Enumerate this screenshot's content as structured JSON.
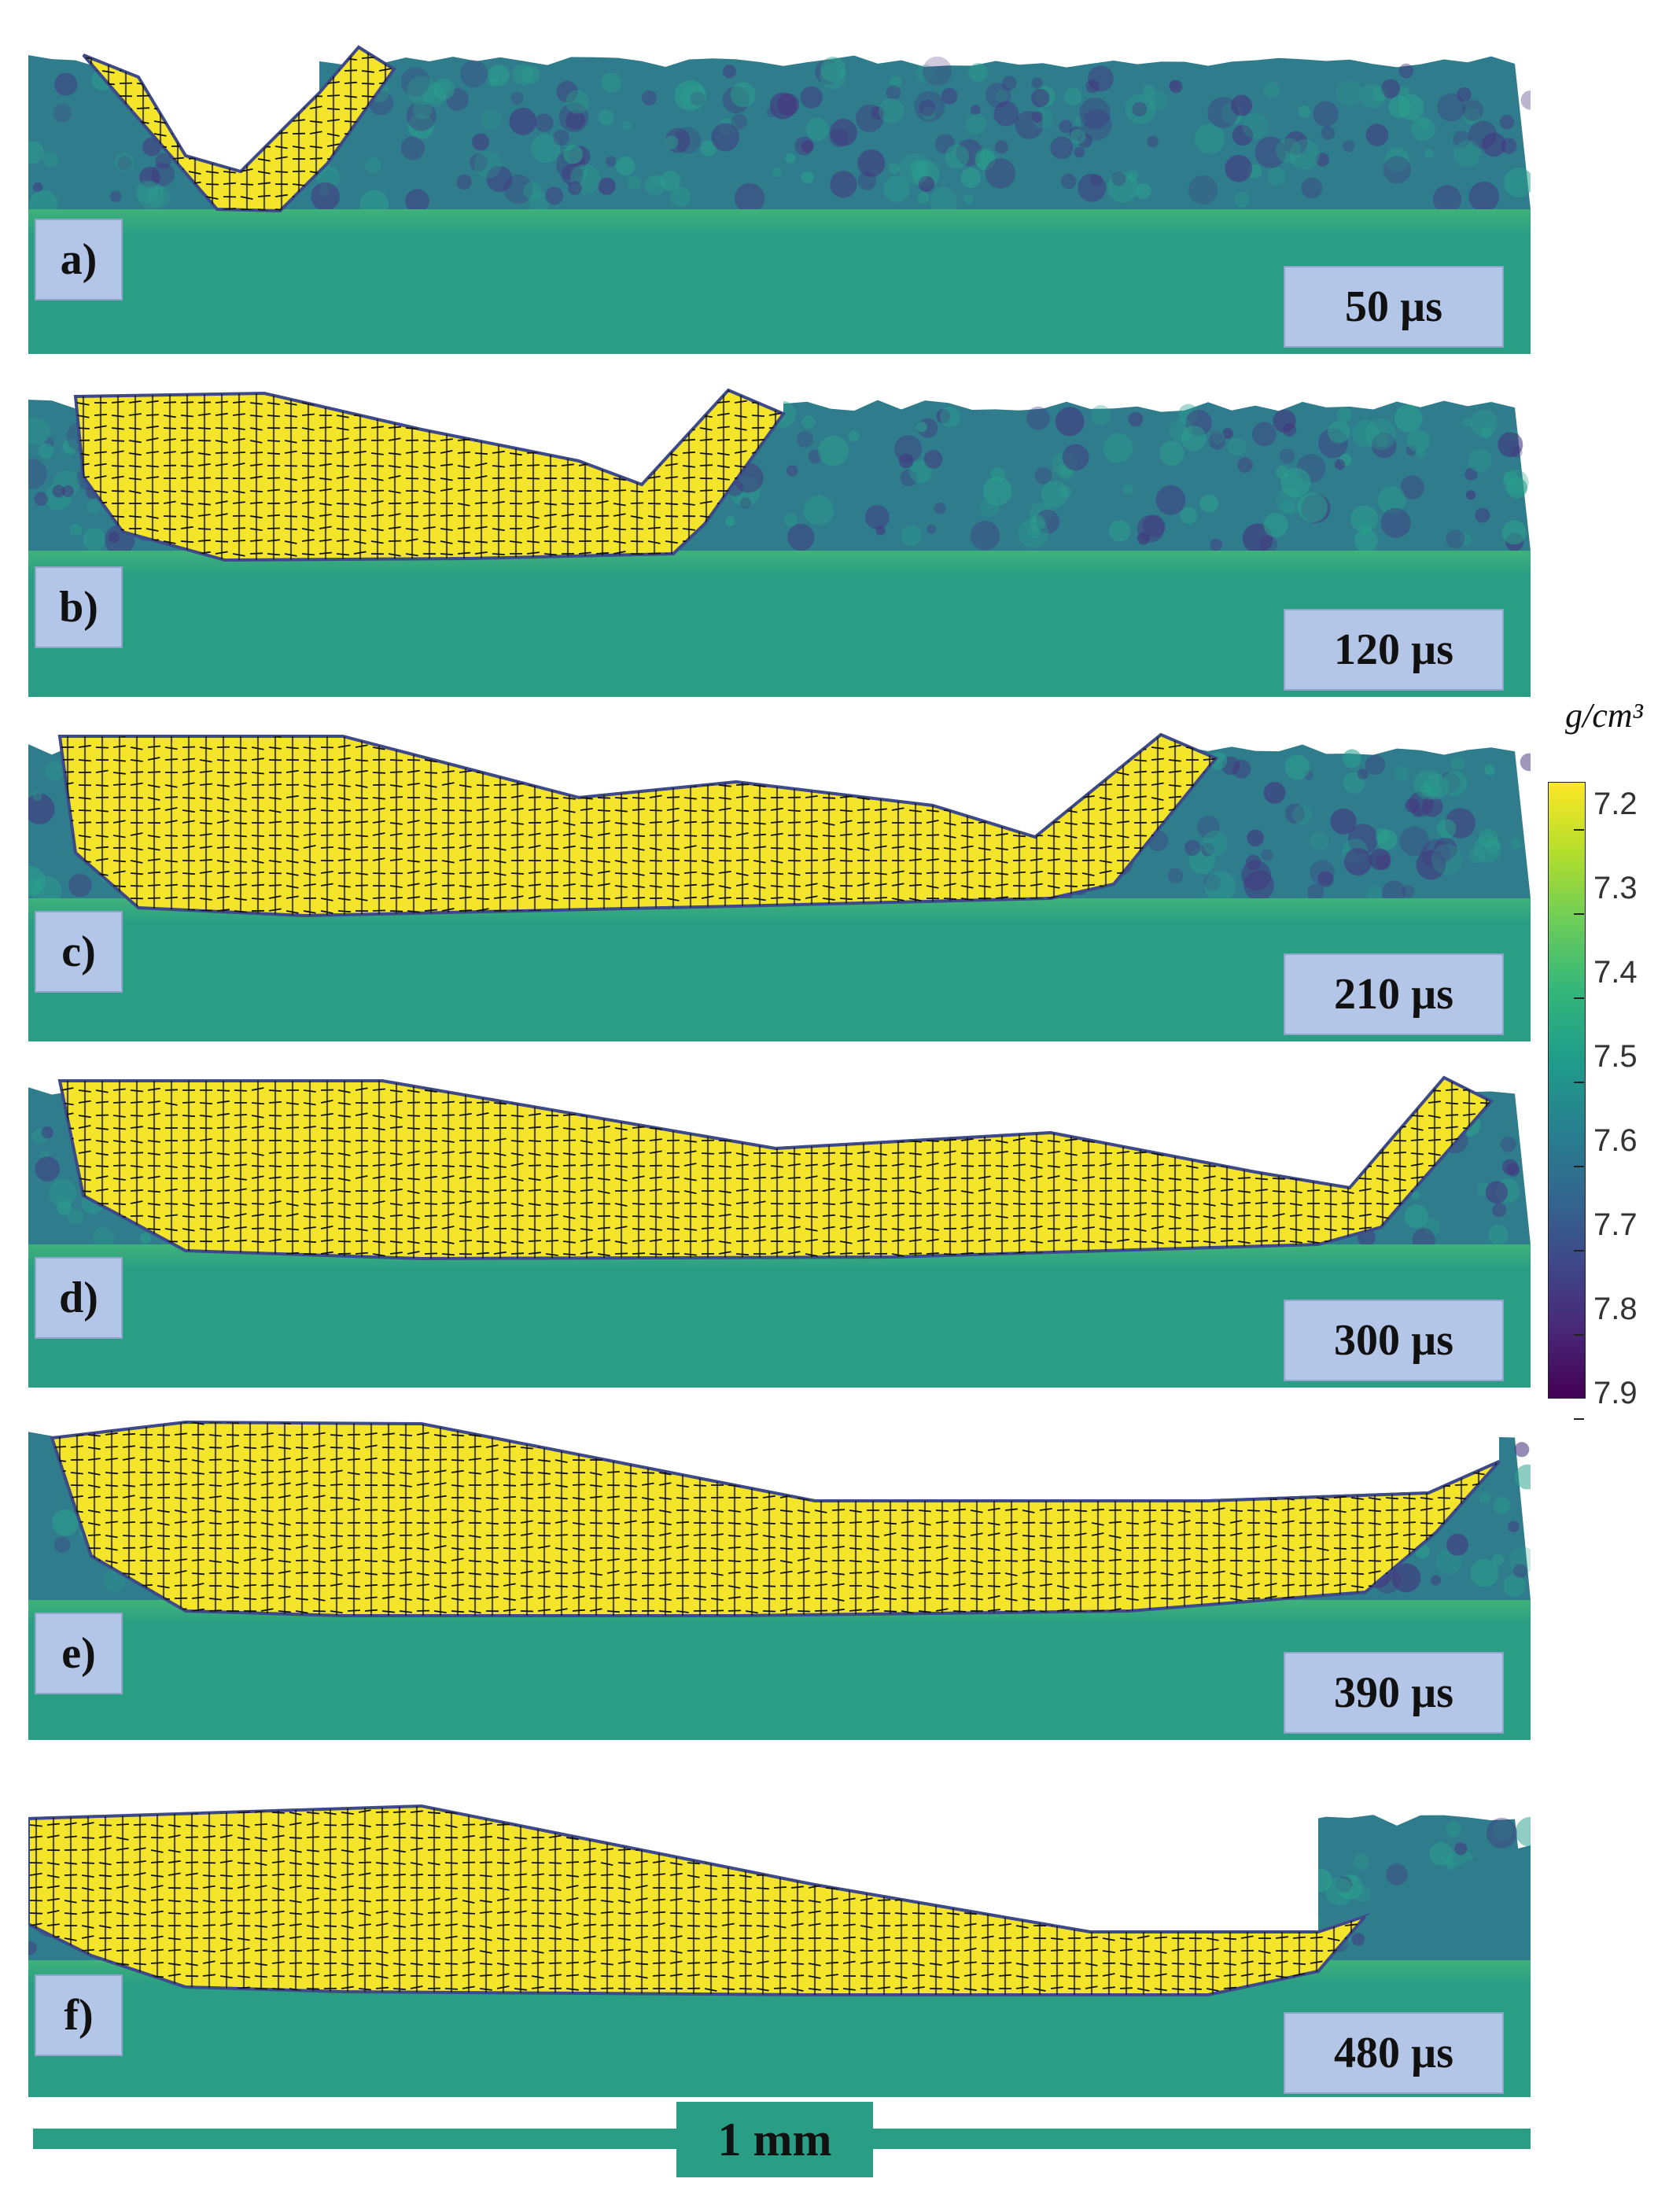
{
  "panels": [
    {
      "label": "a)",
      "time": "50 µs"
    },
    {
      "label": "b)",
      "time": "120 µs"
    },
    {
      "label": "c)",
      "time": "210 µs"
    },
    {
      "label": "d)",
      "time": "300 µs"
    },
    {
      "label": "e)",
      "time": "390 µs"
    },
    {
      "label": "f)",
      "time": "480 µs"
    }
  ],
  "colorbar": {
    "unit": "g/cm³",
    "ticks": [
      "7.2",
      "7.3",
      "7.4",
      "7.5",
      "7.6",
      "7.7",
      "7.8",
      "7.9"
    ],
    "colors": [
      "#fde725",
      "#b5de2b",
      "#6ece58",
      "#35b779",
      "#1f9e89",
      "#26828e",
      "#31688e",
      "#3e4989",
      "#482878",
      "#440154"
    ]
  },
  "scale": {
    "label": "1 mm"
  },
  "colors": {
    "substrate": "#2a9d85",
    "powder": "#2f7c8c",
    "powder_dark": "#46337e",
    "melt": "#f5e52a",
    "arrow": "#111111"
  }
}
